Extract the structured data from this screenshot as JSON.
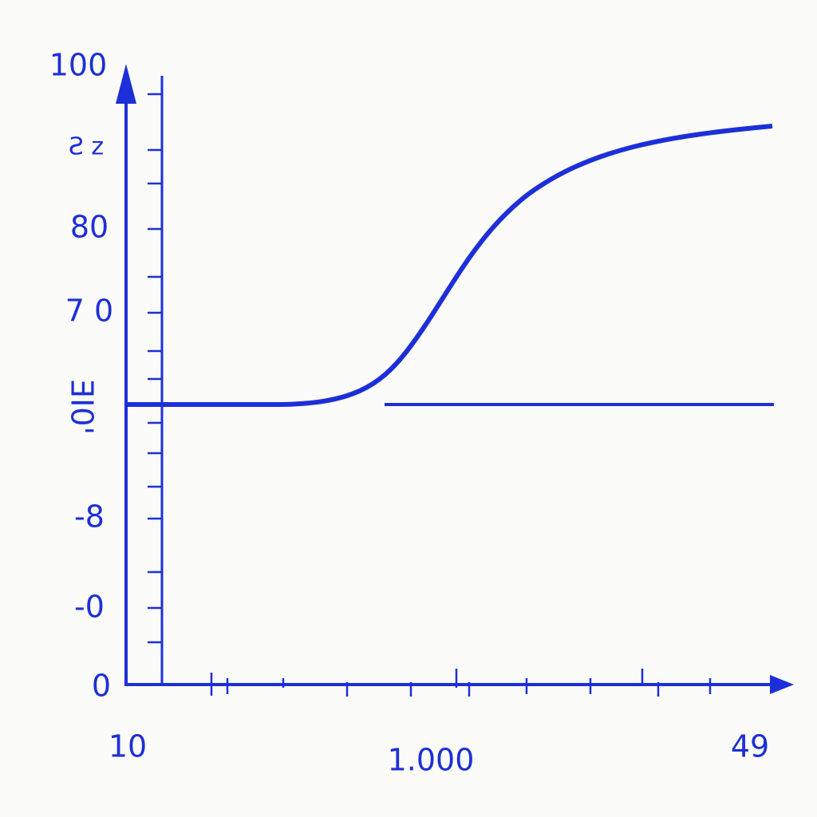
{
  "y_labels": [
    "100",
    "Ƨ z",
    "80",
    "7 0",
    "ƎI0'",
    "-8",
    "-0",
    "0"
  ],
  "x_labels": [
    "10",
    "1.000",
    "49"
  ]
}
